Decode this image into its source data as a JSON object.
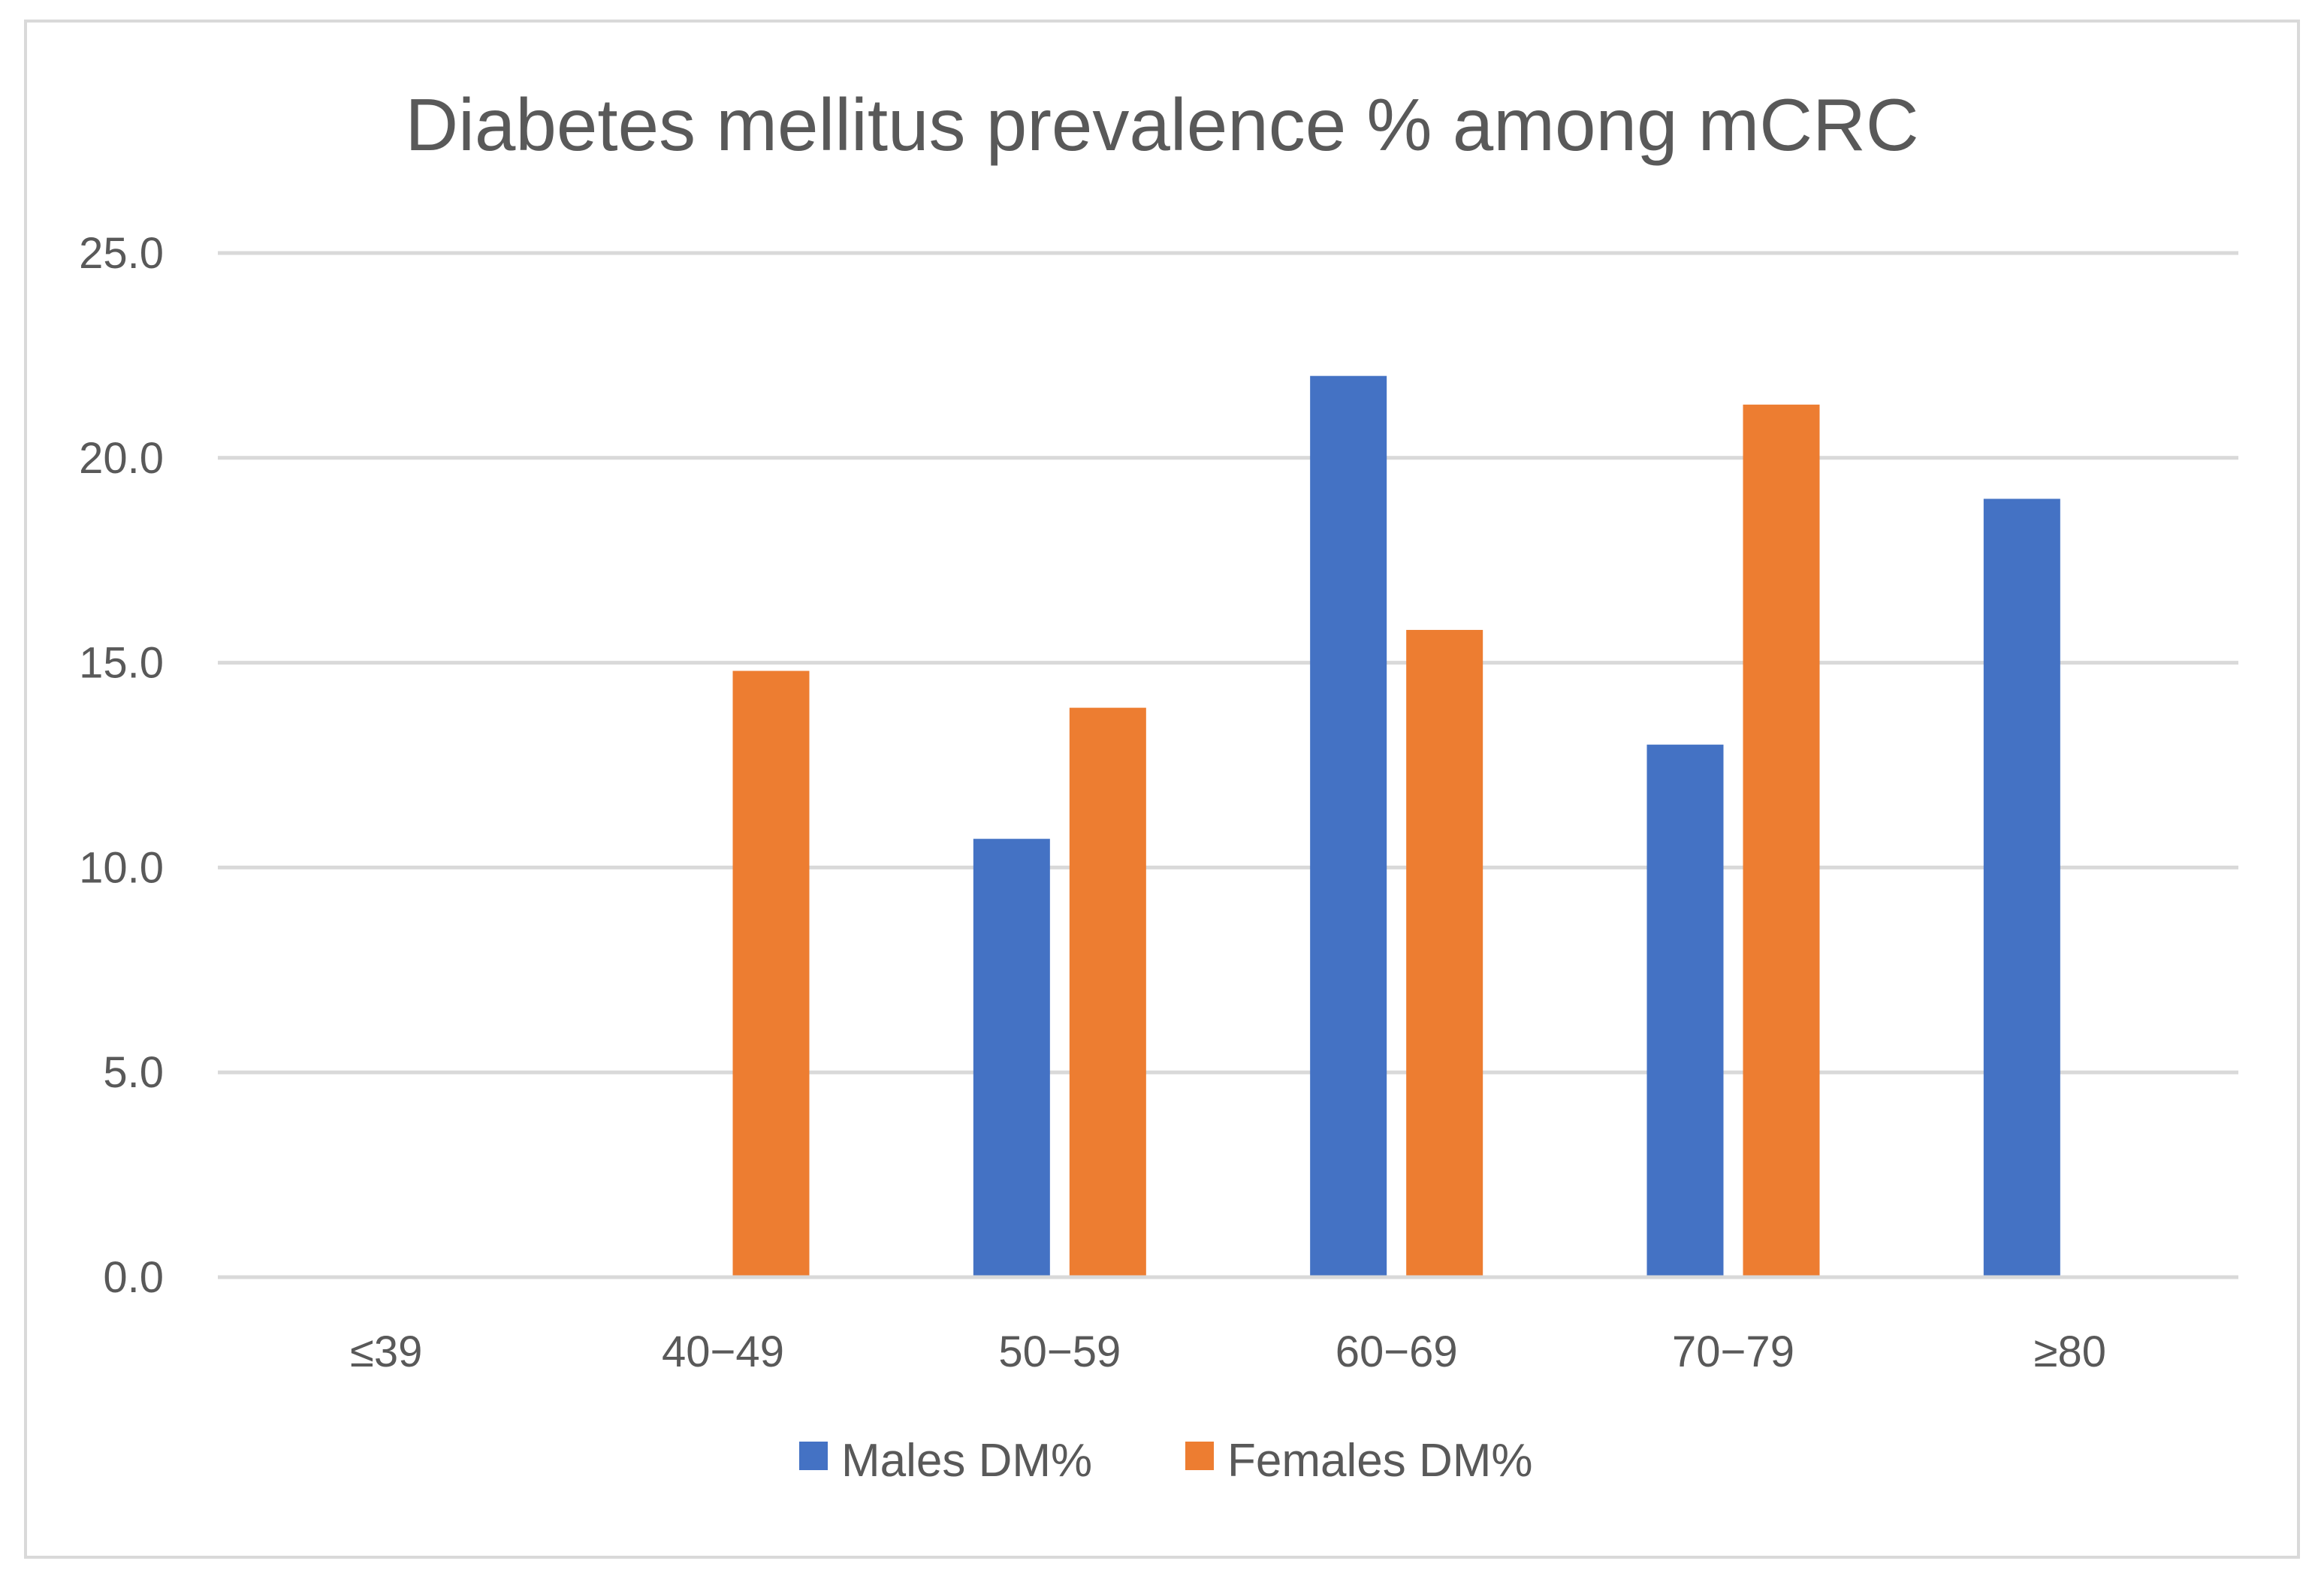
{
  "chart_data": {
    "type": "bar",
    "title": "Diabetes mellitus prevalence % among mCRC",
    "xlabel": "",
    "ylabel": "",
    "categories": [
      "≤39",
      "40−49",
      "50−59",
      "60−69",
      "70−79",
      "≥80"
    ],
    "series": [
      {
        "name": "Males DM%",
        "color": "#4472c4",
        "values": [
          0,
          0,
          10.7,
          22.0,
          13.0,
          19.0
        ]
      },
      {
        "name": "Females DM%",
        "color": "#ed7d31",
        "values": [
          0,
          14.8,
          13.9,
          15.8,
          21.3,
          0
        ]
      }
    ],
    "ylim": [
      0,
      25
    ],
    "yticks": [
      "0.0",
      "5.0",
      "10.0",
      "15.0",
      "20.0",
      "25.0"
    ],
    "grid": true,
    "legend_position": "bottom",
    "colors": {
      "grid": "#d9d9d9",
      "text": "#595959",
      "frame": "#d9d9d9"
    }
  }
}
